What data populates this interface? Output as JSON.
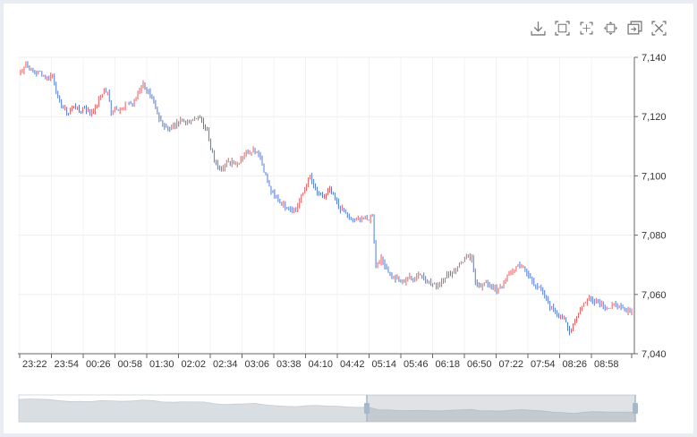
{
  "toolbar": {
    "icons": [
      "download-icon",
      "zoom-select-icon",
      "zoom-reset-icon",
      "fullscreen-icon",
      "restore-icon",
      "clear-icon"
    ]
  },
  "chart_data": {
    "type": "candlestick",
    "ylim": [
      7040,
      7140
    ],
    "yticks": [
      "7,040",
      "7,060",
      "7,080",
      "7,100",
      "7,120",
      "7,140"
    ],
    "ytick_values": [
      7040,
      7060,
      7080,
      7100,
      7120,
      7140
    ],
    "xticks": [
      "23:22",
      "23:54",
      "00:26",
      "00:58",
      "01:30",
      "02:02",
      "02:34",
      "03:06",
      "03:38",
      "04:10",
      "04:42",
      "05:14",
      "05:46",
      "06:18",
      "06:50",
      "07:22",
      "07:54",
      "08:26",
      "08:58"
    ],
    "up_color": "#ec5a5a",
    "down_color": "#4f7bd8",
    "grid": true,
    "path": [
      [
        0,
        7134
      ],
      [
        4,
        7138
      ],
      [
        8,
        7135
      ],
      [
        12,
        7135
      ],
      [
        16,
        7133
      ],
      [
        19,
        7134
      ],
      [
        22,
        7126
      ],
      [
        25,
        7123
      ],
      [
        28,
        7121
      ],
      [
        31,
        7124
      ],
      [
        34,
        7122
      ],
      [
        37,
        7123
      ],
      [
        40,
        7121
      ],
      [
        43,
        7123
      ],
      [
        46,
        7127
      ],
      [
        48,
        7129
      ],
      [
        50,
        7128
      ],
      [
        52,
        7122
      ],
      [
        55,
        7123
      ],
      [
        58,
        7122
      ],
      [
        61,
        7125
      ],
      [
        64,
        7124
      ],
      [
        67,
        7128
      ],
      [
        70,
        7131
      ],
      [
        73,
        7128
      ],
      [
        76,
        7124
      ],
      [
        79,
        7119
      ],
      [
        82,
        7117
      ],
      [
        85,
        7116
      ],
      [
        88,
        7117
      ],
      [
        91,
        7119
      ],
      [
        94,
        7118
      ],
      [
        97,
        7118
      ],
      [
        100,
        7120
      ],
      [
        103,
        7119
      ],
      [
        106,
        7115
      ],
      [
        108,
        7109
      ],
      [
        111,
        7104
      ],
      [
        114,
        7103
      ],
      [
        117,
        7104
      ],
      [
        120,
        7105
      ],
      [
        123,
        7104
      ],
      [
        126,
        7107
      ],
      [
        129,
        7108
      ],
      [
        132,
        7109
      ],
      [
        135,
        7108
      ],
      [
        138,
        7102
      ],
      [
        141,
        7096
      ],
      [
        144,
        7093
      ],
      [
        147,
        7091
      ],
      [
        150,
        7090
      ],
      [
        153,
        7089
      ],
      [
        156,
        7089
      ],
      [
        159,
        7093
      ],
      [
        162,
        7097
      ],
      [
        164,
        7100
      ],
      [
        166,
        7096
      ],
      [
        169,
        7093
      ],
      [
        172,
        7093
      ],
      [
        175,
        7095
      ],
      [
        178,
        7092
      ],
      [
        181,
        7089
      ],
      [
        184,
        7087
      ],
      [
        187,
        7085
      ],
      [
        190,
        7085
      ],
      [
        193,
        7086
      ],
      [
        196,
        7085
      ],
      [
        199,
        7087
      ],
      [
        201,
        7070
      ],
      [
        204,
        7072
      ],
      [
        207,
        7069
      ],
      [
        210,
        7066
      ],
      [
        213,
        7065
      ],
      [
        216,
        7064
      ],
      [
        219,
        7066
      ],
      [
        222,
        7065
      ],
      [
        225,
        7067
      ],
      [
        228,
        7066
      ],
      [
        231,
        7064
      ],
      [
        234,
        7063
      ],
      [
        237,
        7064
      ],
      [
        240,
        7066
      ],
      [
        243,
        7067
      ],
      [
        246,
        7069
      ],
      [
        249,
        7071
      ],
      [
        252,
        7072
      ],
      [
        255,
        7072
      ],
      [
        257,
        7064
      ],
      [
        260,
        7063
      ],
      [
        263,
        7064
      ],
      [
        266,
        7063
      ],
      [
        269,
        7061
      ],
      [
        272,
        7063
      ],
      [
        275,
        7066
      ],
      [
        278,
        7068
      ],
      [
        281,
        7070
      ],
      [
        284,
        7069
      ],
      [
        287,
        7066
      ],
      [
        290,
        7064
      ],
      [
        293,
        7062
      ],
      [
        296,
        7059
      ],
      [
        299,
        7056
      ],
      [
        302,
        7054
      ],
      [
        305,
        7053
      ],
      [
        308,
        7050
      ],
      [
        310,
        7047
      ],
      [
        312,
        7050
      ],
      [
        315,
        7054
      ],
      [
        318,
        7057
      ],
      [
        321,
        7059
      ],
      [
        324,
        7058
      ],
      [
        327,
        7057
      ],
      [
        330,
        7056
      ],
      [
        333,
        7055
      ],
      [
        336,
        7057
      ],
      [
        339,
        7055
      ],
      [
        342,
        7054
      ],
      [
        345,
        7055
      ]
    ]
  }
}
